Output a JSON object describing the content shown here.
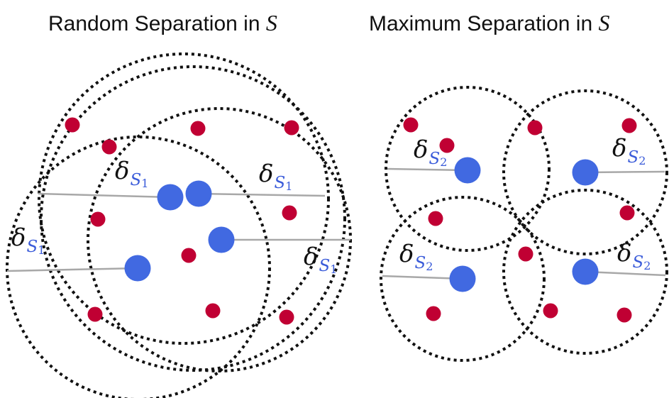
{
  "titles": {
    "left": {
      "text": "Random Separation in ",
      "var": "S"
    },
    "right": {
      "text": "Maximum Separation in ",
      "var": "S"
    }
  },
  "labels": {
    "delta_symbol": "δ",
    "left_subscript": "S",
    "left_subscript_index": "1",
    "right_subscript": "S",
    "right_subscript_index": "2"
  },
  "colors": {
    "center_point": "#4169e1",
    "data_point": "#c00033",
    "circle_stroke": "#111111",
    "radius_line": "#a8a8a8",
    "subscript": "#3a5bd9"
  }
}
